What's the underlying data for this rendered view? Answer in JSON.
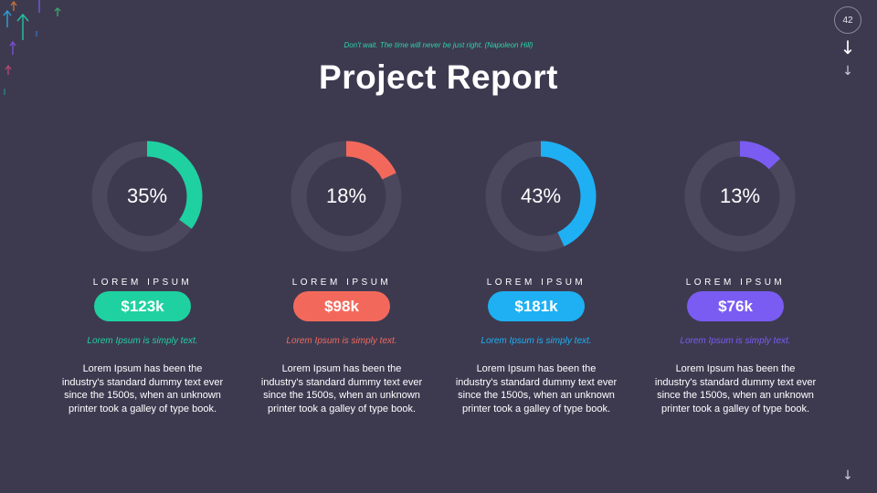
{
  "header": {
    "quote": "Don't wait. The time will never be just right. (Napoleon Hill)",
    "title": "Project Report"
  },
  "page_number": "42",
  "colors": {
    "background": "#3d3a50",
    "track": "#4b485e",
    "teal": "#1fd1a0",
    "coral": "#f2695c",
    "blue": "#1eb0f3",
    "purple": "#7a5cf3"
  },
  "icons": {
    "decor": "arrow-up-icon",
    "nav_down": "arrow-down-icon"
  },
  "metrics": [
    {
      "percent_label": "35%",
      "percent": 35,
      "label": "LOREM IPSUM",
      "value": "$123k",
      "subtitle": "Lorem Ipsum is simply text.",
      "body": "Lorem Ipsum has been the industry's standard dummy text ever since the 1500s, when an unknown printer took a galley of type book.",
      "color": "#1fd1a0"
    },
    {
      "percent_label": "18%",
      "percent": 18,
      "label": "LOREM IPSUM",
      "value": "$98k",
      "subtitle": "Lorem Ipsum is simply text.",
      "body": "Lorem Ipsum has been the industry's standard dummy text ever since the 1500s, when an unknown printer took a galley of type book.",
      "color": "#f2695c"
    },
    {
      "percent_label": "43%",
      "percent": 43,
      "label": "LOREM IPSUM",
      "value": "$181k",
      "subtitle": "Lorem Ipsum is simply text.",
      "body": "Lorem Ipsum has been the industry's standard dummy text ever since the 1500s, when an unknown printer took a galley of type book.",
      "color": "#1eb0f3"
    },
    {
      "percent_label": "13%",
      "percent": 13,
      "label": "LOREM IPSUM",
      "value": "$76k",
      "subtitle": "Lorem Ipsum is simply text.",
      "body": "Lorem Ipsum has been the industry's standard dummy text ever since the 1500s, when an unknown printer took a galley of type book.",
      "color": "#7a5cf3"
    }
  ]
}
